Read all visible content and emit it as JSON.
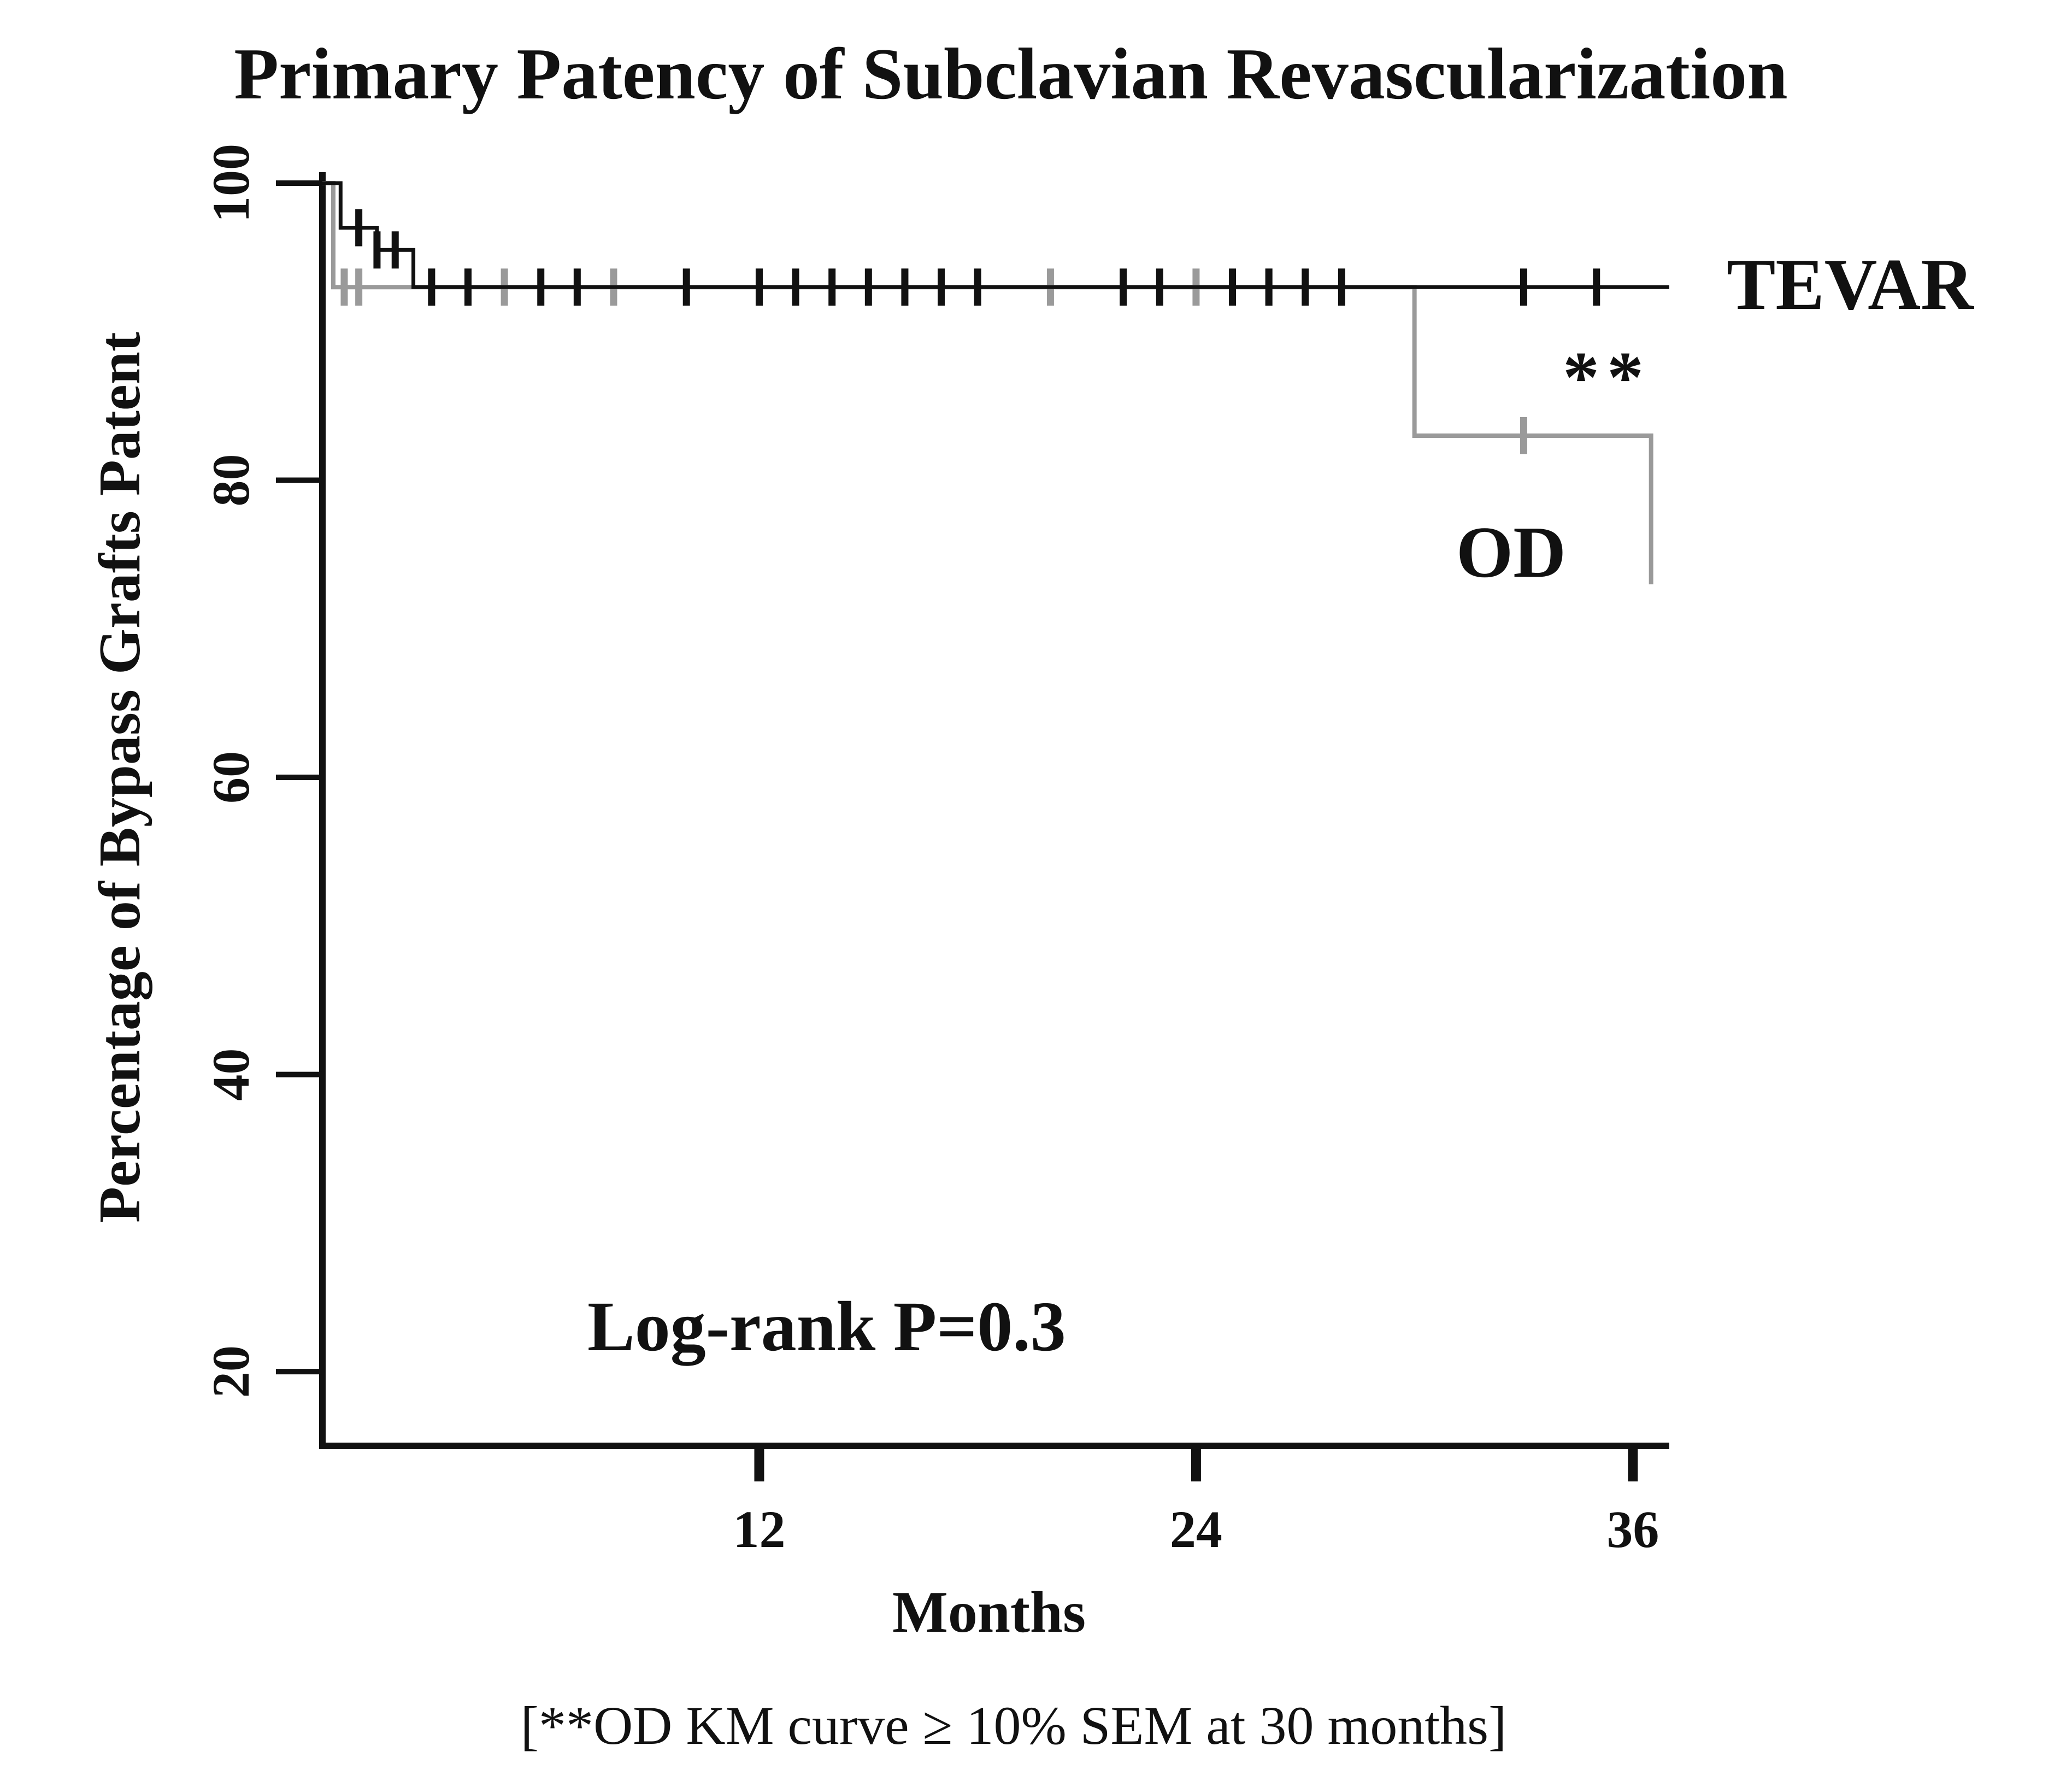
{
  "chart_data": {
    "type": "line",
    "title": "Primary Patency of Subclavian Revascularization",
    "xlabel": "Months",
    "ylabel": "Percentage of Bypass Grafts Patent",
    "xlim": [
      0,
      37
    ],
    "ylim": [
      15,
      100
    ],
    "x_ticks": [
      12,
      24,
      36
    ],
    "y_ticks": [
      20,
      40,
      60,
      80,
      100
    ],
    "grid": false,
    "colors": {
      "TEVAR": "#111111",
      "OD": "#9a9a9a",
      "axis": "#111111"
    },
    "series": [
      {
        "name": "TEVAR",
        "step_points": [
          [
            0,
            100
          ],
          [
            0.5,
            100
          ],
          [
            0.5,
            97
          ],
          [
            1.5,
            97
          ],
          [
            1.5,
            95.5
          ],
          [
            2.5,
            95.5
          ],
          [
            2.5,
            93
          ],
          [
            37,
            93
          ]
        ],
        "censor_x": [
          1.0,
          1.5,
          2.0,
          3.0,
          4.0,
          6.0,
          7.0,
          10.0,
          12.0,
          13.0,
          14.0,
          15.0,
          16.0,
          17.0,
          18.0,
          22.0,
          23.0,
          25.0,
          26.0,
          27.0,
          28.0,
          33.0,
          35.0
        ]
      },
      {
        "name": "OD",
        "step_points": [
          [
            0,
            100
          ],
          [
            0.3,
            100
          ],
          [
            0.3,
            93
          ],
          [
            30,
            93
          ],
          [
            30,
            83
          ],
          [
            36.5,
            83
          ],
          [
            36.5,
            73
          ]
        ],
        "censor_x": [
          0.6,
          1.0,
          3.0,
          4.0,
          5.0,
          8.0,
          12.0,
          16.0,
          20.0,
          24.0,
          26.0,
          28.0,
          33.0
        ]
      }
    ],
    "annotations": {
      "tevar_label": "TEVAR",
      "od_label": "OD",
      "asterisk": "**",
      "pvalue": "Log-rank P=0.3",
      "footnote": "[**OD KM curve ≥ 10% SEM at 30 months]"
    }
  }
}
